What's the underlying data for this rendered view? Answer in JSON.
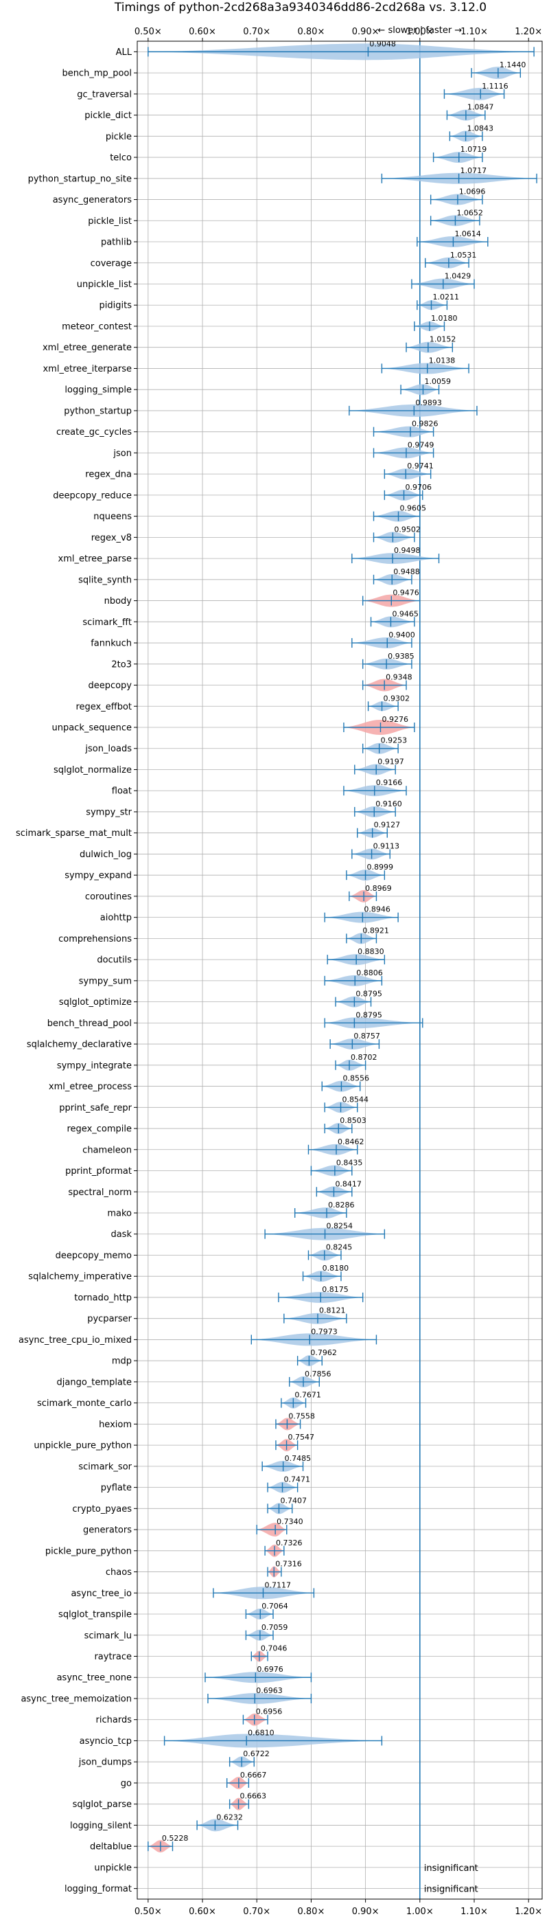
{
  "chart_data": {
    "type": "violin",
    "title": "Timings of python-2cd268a3a9340346dd86-2cd268a vs. 3.12.0",
    "annotation": "← slower | faster →",
    "xlabel": "",
    "ylabel": "",
    "xlim": [
      0.48,
      1.225
    ],
    "x_ticks": [
      0.5,
      0.6,
      0.7,
      0.8,
      0.9,
      1.0,
      1.1,
      1.2
    ],
    "x_tick_labels": [
      "0.50×",
      "0.60×",
      "0.70×",
      "0.80×",
      "0.90×",
      "1.00×",
      "1.10×",
      "1.20×"
    ],
    "grid": true,
    "reference_line": 1.0,
    "colors": {
      "normal": "#a8c8e6",
      "highlight": "#f4a6a6",
      "line": "#1f77b4"
    },
    "insignificant_label": "insignificant",
    "benchmarks": [
      {
        "name": "ALL",
        "value": "0.9048",
        "center": 0.9048,
        "min": 0.5,
        "max": 1.21,
        "width": 12,
        "color": "normal"
      },
      {
        "name": "bench_mp_pool",
        "value": "1.1440",
        "center": 1.144,
        "min": 1.095,
        "max": 1.185,
        "width": 9,
        "color": "normal"
      },
      {
        "name": "gc_traversal",
        "value": "1.1116",
        "center": 1.1116,
        "min": 1.045,
        "max": 1.155,
        "width": 9,
        "color": "normal"
      },
      {
        "name": "pickle_dict",
        "value": "1.0847",
        "center": 1.0847,
        "min": 1.05,
        "max": 1.12,
        "width": 8,
        "color": "normal"
      },
      {
        "name": "pickle",
        "value": "1.0843",
        "center": 1.0843,
        "min": 1.055,
        "max": 1.115,
        "width": 8,
        "color": "normal"
      },
      {
        "name": "telco",
        "value": "1.0719",
        "center": 1.0719,
        "min": 1.025,
        "max": 1.115,
        "width": 8,
        "color": "normal"
      },
      {
        "name": "python_startup_no_site",
        "value": "1.0717",
        "center": 1.0717,
        "min": 0.93,
        "max": 1.215,
        "width": 8,
        "color": "normal"
      },
      {
        "name": "async_generators",
        "value": "1.0696",
        "center": 1.0696,
        "min": 1.02,
        "max": 1.115,
        "width": 8,
        "color": "normal"
      },
      {
        "name": "pickle_list",
        "value": "1.0652",
        "center": 1.0652,
        "min": 1.02,
        "max": 1.11,
        "width": 8,
        "color": "normal"
      },
      {
        "name": "pathlib",
        "value": "1.0614",
        "center": 1.0614,
        "min": 0.995,
        "max": 1.125,
        "width": 8,
        "color": "normal"
      },
      {
        "name": "coverage",
        "value": "1.0531",
        "center": 1.0531,
        "min": 1.01,
        "max": 1.09,
        "width": 8,
        "color": "normal"
      },
      {
        "name": "unpickle_list",
        "value": "1.0429",
        "center": 1.0429,
        "min": 0.985,
        "max": 1.1,
        "width": 8,
        "color": "normal"
      },
      {
        "name": "pidigits",
        "value": "1.0211",
        "center": 1.0211,
        "min": 0.995,
        "max": 1.05,
        "width": 7,
        "color": "normal"
      },
      {
        "name": "meteor_contest",
        "value": "1.0180",
        "center": 1.018,
        "min": 0.99,
        "max": 1.045,
        "width": 7,
        "color": "normal"
      },
      {
        "name": "xml_etree_generate",
        "value": "1.0152",
        "center": 1.0152,
        "min": 0.975,
        "max": 1.06,
        "width": 8,
        "color": "normal"
      },
      {
        "name": "xml_etree_iterparse",
        "value": "1.0138",
        "center": 1.0138,
        "min": 0.93,
        "max": 1.09,
        "width": 8,
        "color": "normal"
      },
      {
        "name": "logging_simple",
        "value": "1.0059",
        "center": 1.0059,
        "min": 0.965,
        "max": 1.035,
        "width": 8,
        "color": "normal"
      },
      {
        "name": "python_startup",
        "value": "0.9893",
        "center": 0.9893,
        "min": 0.87,
        "max": 1.105,
        "width": 9,
        "color": "normal"
      },
      {
        "name": "create_gc_cycles",
        "value": "0.9826",
        "center": 0.9826,
        "min": 0.915,
        "max": 1.025,
        "width": 8,
        "color": "normal"
      },
      {
        "name": "json",
        "value": "0.9749",
        "center": 0.9749,
        "min": 0.915,
        "max": 1.025,
        "width": 8,
        "color": "normal"
      },
      {
        "name": "regex_dna",
        "value": "0.9741",
        "center": 0.9741,
        "min": 0.935,
        "max": 1.02,
        "width": 8,
        "color": "normal"
      },
      {
        "name": "deepcopy_reduce",
        "value": "0.9706",
        "center": 0.9706,
        "min": 0.935,
        "max": 1.005,
        "width": 8,
        "color": "normal"
      },
      {
        "name": "nqueens",
        "value": "0.9605",
        "center": 0.9605,
        "min": 0.915,
        "max": 1.0,
        "width": 8,
        "color": "normal"
      },
      {
        "name": "regex_v8",
        "value": "0.9502",
        "center": 0.9502,
        "min": 0.915,
        "max": 0.99,
        "width": 8,
        "color": "normal"
      },
      {
        "name": "xml_etree_parse",
        "value": "0.9498",
        "center": 0.9498,
        "min": 0.875,
        "max": 1.035,
        "width": 8,
        "color": "normal"
      },
      {
        "name": "sqlite_synth",
        "value": "0.9488",
        "center": 0.9488,
        "min": 0.915,
        "max": 0.985,
        "width": 8,
        "color": "normal"
      },
      {
        "name": "nbody",
        "value": "0.9476",
        "center": 0.9476,
        "min": 0.895,
        "max": 1.0,
        "width": 9,
        "color": "highlight"
      },
      {
        "name": "scimark_fft",
        "value": "0.9465",
        "center": 0.9465,
        "min": 0.91,
        "max": 0.99,
        "width": 8,
        "color": "normal"
      },
      {
        "name": "fannkuch",
        "value": "0.9400",
        "center": 0.94,
        "min": 0.875,
        "max": 0.985,
        "width": 8,
        "color": "normal"
      },
      {
        "name": "2to3",
        "value": "0.9385",
        "center": 0.9385,
        "min": 0.895,
        "max": 0.985,
        "width": 8,
        "color": "normal"
      },
      {
        "name": "deepcopy",
        "value": "0.9348",
        "center": 0.9348,
        "min": 0.895,
        "max": 0.975,
        "width": 9,
        "color": "highlight"
      },
      {
        "name": "regex_effbot",
        "value": "0.9302",
        "center": 0.9302,
        "min": 0.905,
        "max": 0.96,
        "width": 7,
        "color": "normal"
      },
      {
        "name": "unpack_sequence",
        "value": "0.9276",
        "center": 0.9276,
        "min": 0.86,
        "max": 0.99,
        "width": 11,
        "color": "highlight"
      },
      {
        "name": "json_loads",
        "value": "0.9253",
        "center": 0.9253,
        "min": 0.895,
        "max": 0.96,
        "width": 8,
        "color": "normal"
      },
      {
        "name": "sqlglot_normalize",
        "value": "0.9197",
        "center": 0.9197,
        "min": 0.88,
        "max": 0.955,
        "width": 8,
        "color": "normal"
      },
      {
        "name": "float",
        "value": "0.9166",
        "center": 0.9166,
        "min": 0.86,
        "max": 0.975,
        "width": 8,
        "color": "normal"
      },
      {
        "name": "sympy_str",
        "value": "0.9160",
        "center": 0.916,
        "min": 0.88,
        "max": 0.955,
        "width": 8,
        "color": "normal"
      },
      {
        "name": "scimark_sparse_mat_mult",
        "value": "0.9127",
        "center": 0.9127,
        "min": 0.885,
        "max": 0.94,
        "width": 7,
        "color": "normal"
      },
      {
        "name": "dulwich_log",
        "value": "0.9113",
        "center": 0.9113,
        "min": 0.875,
        "max": 0.945,
        "width": 8,
        "color": "normal"
      },
      {
        "name": "sympy_expand",
        "value": "0.8999",
        "center": 0.8999,
        "min": 0.865,
        "max": 0.935,
        "width": 8,
        "color": "normal"
      },
      {
        "name": "coroutines",
        "value": "0.8969",
        "center": 0.8969,
        "min": 0.87,
        "max": 0.92,
        "width": 9,
        "color": "highlight"
      },
      {
        "name": "aiohttp",
        "value": "0.8946",
        "center": 0.8946,
        "min": 0.825,
        "max": 0.96,
        "width": 8,
        "color": "normal"
      },
      {
        "name": "comprehensions",
        "value": "0.8921",
        "center": 0.8921,
        "min": 0.865,
        "max": 0.92,
        "width": 8,
        "color": "normal"
      },
      {
        "name": "docutils",
        "value": "0.8830",
        "center": 0.883,
        "min": 0.83,
        "max": 0.935,
        "width": 8,
        "color": "normal"
      },
      {
        "name": "sympy_sum",
        "value": "0.8806",
        "center": 0.8806,
        "min": 0.825,
        "max": 0.93,
        "width": 8,
        "color": "normal"
      },
      {
        "name": "sqlglot_optimize",
        "value": "0.8795",
        "center": 0.8795,
        "min": 0.845,
        "max": 0.91,
        "width": 8,
        "color": "normal"
      },
      {
        "name": "bench_thread_pool",
        "value": "0.8795",
        "center": 0.8795,
        "min": 0.825,
        "max": 1.005,
        "width": 8,
        "color": "normal"
      },
      {
        "name": "sqlalchemy_declarative",
        "value": "0.8757",
        "center": 0.8757,
        "min": 0.835,
        "max": 0.925,
        "width": 8,
        "color": "normal"
      },
      {
        "name": "sympy_integrate",
        "value": "0.8702",
        "center": 0.8702,
        "min": 0.845,
        "max": 0.9,
        "width": 8,
        "color": "normal"
      },
      {
        "name": "xml_etree_process",
        "value": "0.8556",
        "center": 0.8556,
        "min": 0.82,
        "max": 0.89,
        "width": 8,
        "color": "normal"
      },
      {
        "name": "pprint_safe_repr",
        "value": "0.8544",
        "center": 0.8544,
        "min": 0.825,
        "max": 0.885,
        "width": 8,
        "color": "normal"
      },
      {
        "name": "regex_compile",
        "value": "0.8503",
        "center": 0.8503,
        "min": 0.825,
        "max": 0.875,
        "width": 8,
        "color": "normal"
      },
      {
        "name": "chameleon",
        "value": "0.8462",
        "center": 0.8462,
        "min": 0.795,
        "max": 0.885,
        "width": 8,
        "color": "normal"
      },
      {
        "name": "pprint_pformat",
        "value": "0.8435",
        "center": 0.8435,
        "min": 0.8,
        "max": 0.875,
        "width": 8,
        "color": "normal"
      },
      {
        "name": "spectral_norm",
        "value": "0.8417",
        "center": 0.8417,
        "min": 0.81,
        "max": 0.875,
        "width": 8,
        "color": "normal"
      },
      {
        "name": "mako",
        "value": "0.8286",
        "center": 0.8286,
        "min": 0.77,
        "max": 0.865,
        "width": 8,
        "color": "normal"
      },
      {
        "name": "dask",
        "value": "0.8254",
        "center": 0.8254,
        "min": 0.715,
        "max": 0.935,
        "width": 9,
        "color": "normal"
      },
      {
        "name": "deepcopy_memo",
        "value": "0.8245",
        "center": 0.8245,
        "min": 0.795,
        "max": 0.855,
        "width": 8,
        "color": "normal"
      },
      {
        "name": "sqlalchemy_imperative",
        "value": "0.8180",
        "center": 0.818,
        "min": 0.785,
        "max": 0.855,
        "width": 8,
        "color": "normal"
      },
      {
        "name": "tornado_http",
        "value": "0.8175",
        "center": 0.8175,
        "min": 0.74,
        "max": 0.895,
        "width": 8,
        "color": "normal"
      },
      {
        "name": "pycparser",
        "value": "0.8121",
        "center": 0.8121,
        "min": 0.75,
        "max": 0.865,
        "width": 8,
        "color": "normal"
      },
      {
        "name": "async_tree_cpu_io_mixed",
        "value": "0.7973",
        "center": 0.7973,
        "min": 0.69,
        "max": 0.92,
        "width": 9,
        "color": "normal"
      },
      {
        "name": "mdp",
        "value": "0.7962",
        "center": 0.7962,
        "min": 0.775,
        "max": 0.82,
        "width": 8,
        "color": "normal"
      },
      {
        "name": "django_template",
        "value": "0.7856",
        "center": 0.7856,
        "min": 0.76,
        "max": 0.815,
        "width": 8,
        "color": "normal"
      },
      {
        "name": "scimark_monte_carlo",
        "value": "0.7671",
        "center": 0.7671,
        "min": 0.745,
        "max": 0.79,
        "width": 8,
        "color": "normal"
      },
      {
        "name": "hexiom",
        "value": "0.7558",
        "center": 0.7558,
        "min": 0.735,
        "max": 0.78,
        "width": 9,
        "color": "highlight"
      },
      {
        "name": "unpickle_pure_python",
        "value": "0.7547",
        "center": 0.7547,
        "min": 0.735,
        "max": 0.775,
        "width": 9,
        "color": "highlight"
      },
      {
        "name": "scimark_sor",
        "value": "0.7485",
        "center": 0.7485,
        "min": 0.71,
        "max": 0.785,
        "width": 8,
        "color": "normal"
      },
      {
        "name": "pyflate",
        "value": "0.7471",
        "center": 0.7471,
        "min": 0.72,
        "max": 0.775,
        "width": 8,
        "color": "normal"
      },
      {
        "name": "crypto_pyaes",
        "value": "0.7407",
        "center": 0.7407,
        "min": 0.72,
        "max": 0.765,
        "width": 8,
        "color": "normal"
      },
      {
        "name": "generators",
        "value": "0.7340",
        "center": 0.734,
        "min": 0.7,
        "max": 0.755,
        "width": 10,
        "color": "highlight"
      },
      {
        "name": "pickle_pure_python",
        "value": "0.7326",
        "center": 0.7326,
        "min": 0.715,
        "max": 0.75,
        "width": 9,
        "color": "highlight"
      },
      {
        "name": "chaos",
        "value": "0.7316",
        "center": 0.7316,
        "min": 0.72,
        "max": 0.745,
        "width": 8,
        "color": "highlight"
      },
      {
        "name": "async_tree_io",
        "value": "0.7117",
        "center": 0.7117,
        "min": 0.62,
        "max": 0.805,
        "width": 9,
        "color": "normal"
      },
      {
        "name": "sqlglot_transpile",
        "value": "0.7064",
        "center": 0.7064,
        "min": 0.68,
        "max": 0.73,
        "width": 8,
        "color": "normal"
      },
      {
        "name": "scimark_lu",
        "value": "0.7059",
        "center": 0.7059,
        "min": 0.68,
        "max": 0.73,
        "width": 8,
        "color": "normal"
      },
      {
        "name": "raytrace",
        "value": "0.7046",
        "center": 0.7046,
        "min": 0.69,
        "max": 0.72,
        "width": 8,
        "color": "highlight"
      },
      {
        "name": "async_tree_none",
        "value": "0.6976",
        "center": 0.6976,
        "min": 0.605,
        "max": 0.8,
        "width": 8,
        "color": "normal"
      },
      {
        "name": "async_tree_memoization",
        "value": "0.6963",
        "center": 0.6963,
        "min": 0.61,
        "max": 0.8,
        "width": 8,
        "color": "normal"
      },
      {
        "name": "richards",
        "value": "0.6956",
        "center": 0.6956,
        "min": 0.675,
        "max": 0.72,
        "width": 9,
        "color": "highlight"
      },
      {
        "name": "asyncio_tcp",
        "value": "0.6810",
        "center": 0.681,
        "min": 0.53,
        "max": 0.93,
        "width": 10,
        "color": "normal"
      },
      {
        "name": "json_dumps",
        "value": "0.6722",
        "center": 0.6722,
        "min": 0.65,
        "max": 0.695,
        "width": 8,
        "color": "normal"
      },
      {
        "name": "go",
        "value": "0.6667",
        "center": 0.6667,
        "min": 0.645,
        "max": 0.685,
        "width": 9,
        "color": "highlight"
      },
      {
        "name": "sqlglot_parse",
        "value": "0.6663",
        "center": 0.6663,
        "min": 0.65,
        "max": 0.685,
        "width": 9,
        "color": "highlight"
      },
      {
        "name": "logging_silent",
        "value": "0.6232",
        "center": 0.6232,
        "min": 0.59,
        "max": 0.665,
        "width": 9,
        "color": "normal"
      },
      {
        "name": "deltablue",
        "value": "0.5228",
        "center": 0.5228,
        "min": 0.5,
        "max": 0.545,
        "width": 9,
        "color": "highlight"
      },
      {
        "name": "unpickle",
        "value": "",
        "center": null,
        "min": null,
        "max": null,
        "width": 0,
        "color": "normal",
        "insignificant": true
      },
      {
        "name": "logging_format",
        "value": "",
        "center": null,
        "min": null,
        "max": null,
        "width": 0,
        "color": "normal",
        "insignificant": true
      }
    ]
  }
}
